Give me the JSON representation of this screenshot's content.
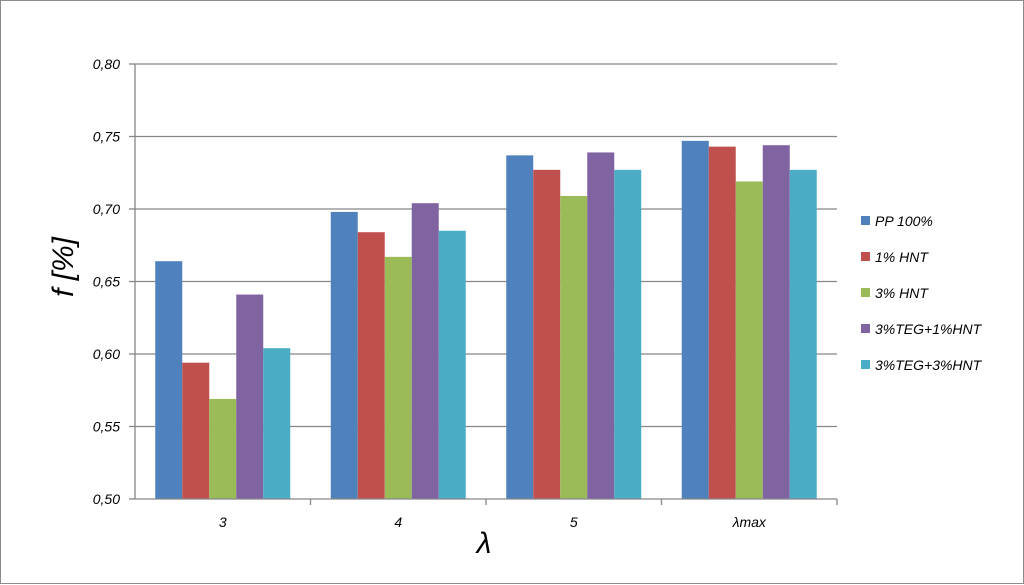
{
  "chart_data": {
    "type": "bar",
    "categories": [
      "3",
      "4",
      "5",
      "λmax"
    ],
    "series": [
      {
        "name": "PP 100%",
        "color": "#4f81bd",
        "values": [
          0.664,
          0.698,
          0.737,
          0.747
        ]
      },
      {
        "name": "1% HNT",
        "color": "#c0504d",
        "values": [
          0.594,
          0.684,
          0.727,
          0.743
        ]
      },
      {
        "name": "3% HNT",
        "color": "#9bbb59",
        "values": [
          0.569,
          0.667,
          0.709,
          0.719
        ]
      },
      {
        "name": "3%TEG+1%HNT",
        "color": "#8064a2",
        "values": [
          0.641,
          0.704,
          0.739,
          0.744
        ]
      },
      {
        "name": "3%TEG+3%HNT",
        "color": "#4bacc6",
        "values": [
          0.604,
          0.685,
          0.727,
          0.727
        ]
      }
    ],
    "xlabel": "λ",
    "ylabel": "f [%]",
    "ylim": [
      0.5,
      0.8
    ],
    "yticks": [
      "0,50",
      "0,55",
      "0,60",
      "0,65",
      "0,70",
      "0,75",
      "0,80"
    ],
    "grid": true,
    "legend_position": "right"
  }
}
